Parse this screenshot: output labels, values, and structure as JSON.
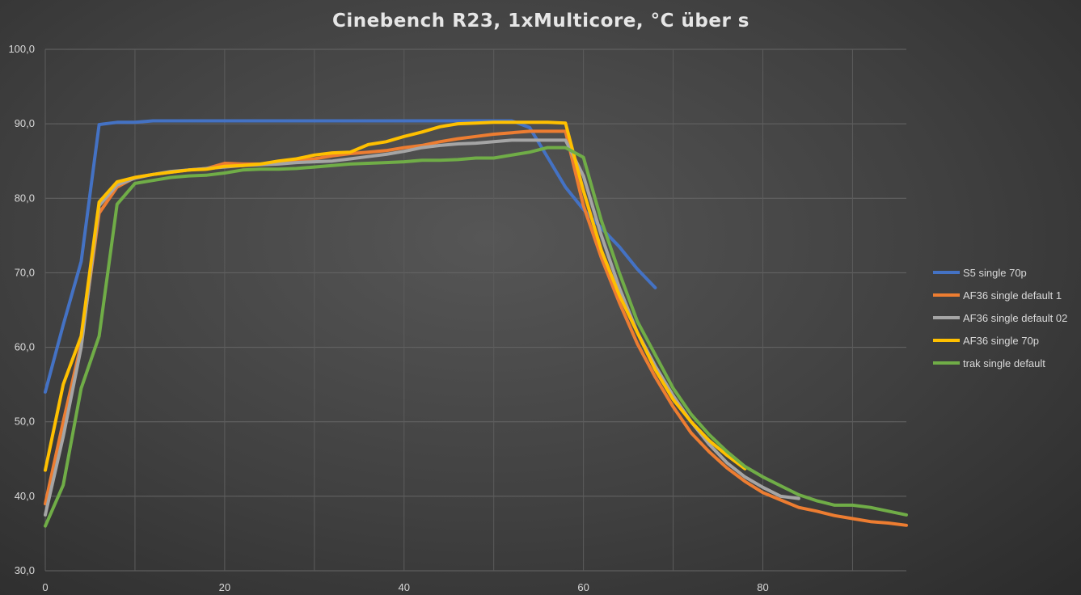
{
  "chart_data": {
    "type": "line",
    "title": "Cinebench R23, 1xMulticore, °C über s",
    "xlabel": "",
    "ylabel": "",
    "xlim": [
      0,
      96
    ],
    "ylim": [
      30,
      100
    ],
    "x_ticks": [
      0,
      20,
      40,
      60,
      80
    ],
    "y_ticks": [
      30,
      40,
      50,
      60,
      70,
      80,
      90,
      100
    ],
    "y_tick_labels": [
      "30,0",
      "40,0",
      "50,0",
      "60,0",
      "70,0",
      "80,0",
      "90,0",
      "100,0"
    ],
    "grid": true,
    "legend_position": "right",
    "series": [
      {
        "name": "S5 single 70p",
        "color": "#4472c4",
        "x": [
          0,
          2,
          4,
          6,
          8,
          10,
          12,
          14,
          16,
          18,
          20,
          22,
          24,
          26,
          28,
          30,
          32,
          34,
          36,
          38,
          40,
          42,
          44,
          46,
          48,
          50,
          52,
          54,
          56,
          58,
          60,
          62,
          64,
          66,
          68
        ],
        "y": [
          54,
          63,
          71.5,
          89.9,
          90.2,
          90.2,
          90.4,
          90.4,
          90.4,
          90.4,
          90.4,
          90.4,
          90.4,
          90.4,
          90.4,
          90.4,
          90.4,
          90.4,
          90.4,
          90.4,
          90.4,
          90.4,
          90.4,
          90.4,
          90.4,
          90.4,
          90.4,
          89.5,
          85.5,
          81.5,
          78.5,
          76,
          73.5,
          70.5,
          68
        ]
      },
      {
        "name": "AF36 single default 1",
        "color": "#ed7d31",
        "x": [
          0,
          2,
          4,
          6,
          8,
          10,
          12,
          14,
          16,
          18,
          20,
          22,
          24,
          26,
          28,
          30,
          32,
          34,
          36,
          38,
          40,
          42,
          44,
          46,
          48,
          50,
          52,
          54,
          56,
          58,
          60,
          62,
          64,
          66,
          68,
          70,
          72,
          74,
          76,
          78,
          80,
          82,
          84,
          86,
          88,
          90,
          92,
          94,
          96
        ],
        "y": [
          39,
          50,
          60.5,
          78,
          81.5,
          82.8,
          83.2,
          83.5,
          83.8,
          84,
          84.7,
          84.6,
          84.6,
          84.8,
          85,
          85.3,
          85.7,
          86,
          86.2,
          86.4,
          86.8,
          87.1,
          87.6,
          88,
          88.3,
          88.6,
          88.8,
          89,
          89,
          89,
          79,
          72,
          66,
          60.5,
          56,
          52,
          48.5,
          46,
          43.8,
          42,
          40.5,
          39.5,
          38.5,
          38,
          37.4,
          37,
          36.6,
          36.4,
          36.1
        ]
      },
      {
        "name": "AF36 single default 02",
        "color": "#a5a5a5",
        "x": [
          0,
          2,
          4,
          6,
          8,
          10,
          12,
          14,
          16,
          18,
          20,
          22,
          24,
          26,
          28,
          30,
          32,
          34,
          36,
          38,
          40,
          42,
          44,
          46,
          48,
          50,
          52,
          54,
          56,
          58,
          60,
          62,
          64,
          66,
          68,
          70,
          72,
          74,
          76,
          78,
          80,
          82,
          84
        ],
        "y": [
          37.5,
          48,
          60,
          79,
          81.8,
          82.7,
          83.2,
          83.6,
          83.8,
          84,
          84.2,
          84.4,
          84.5,
          84.6,
          84.8,
          84.9,
          85,
          85.3,
          85.6,
          85.9,
          86.3,
          86.8,
          87.1,
          87.3,
          87.4,
          87.6,
          87.8,
          87.8,
          87.8,
          87.8,
          83,
          75,
          68,
          62,
          57.5,
          53.5,
          50,
          47,
          44.5,
          42.6,
          41.2,
          40,
          39.7
        ]
      },
      {
        "name": "AF36 single 70p",
        "color": "#ffc000",
        "x": [
          0,
          2,
          4,
          6,
          8,
          10,
          12,
          14,
          16,
          18,
          20,
          22,
          24,
          26,
          28,
          30,
          32,
          34,
          36,
          38,
          40,
          42,
          44,
          46,
          48,
          50,
          52,
          54,
          56,
          58,
          60,
          62,
          64,
          66,
          68,
          70,
          72,
          74,
          76,
          78
        ],
        "y": [
          43.5,
          55,
          61.5,
          79.5,
          82.2,
          82.8,
          83.2,
          83.5,
          83.8,
          83.9,
          84.3,
          84.4,
          84.6,
          85,
          85.3,
          85.8,
          86.1,
          86.2,
          87.2,
          87.6,
          88.3,
          88.9,
          89.6,
          90,
          90.1,
          90.2,
          90.2,
          90.2,
          90.2,
          90.1,
          81,
          73,
          67,
          62,
          57,
          53,
          50,
          47.5,
          45.5,
          43.7
        ]
      },
      {
        "name": "trak single default",
        "color": "#70ad47",
        "x": [
          0,
          2,
          4,
          6,
          8,
          10,
          12,
          14,
          16,
          18,
          20,
          22,
          24,
          26,
          28,
          30,
          32,
          34,
          36,
          38,
          40,
          42,
          44,
          46,
          48,
          50,
          52,
          54,
          56,
          58,
          60,
          62,
          64,
          66,
          68,
          70,
          72,
          74,
          76,
          78,
          80,
          82,
          84,
          86,
          88,
          90,
          92,
          94,
          96
        ],
        "y": [
          36,
          41.5,
          54.5,
          61.5,
          79.2,
          82,
          82.4,
          82.8,
          83,
          83.1,
          83.4,
          83.8,
          83.9,
          83.9,
          84,
          84.2,
          84.4,
          84.6,
          84.7,
          84.8,
          84.9,
          85.1,
          85.1,
          85.2,
          85.4,
          85.4,
          85.8,
          86.2,
          86.8,
          86.8,
          85.5,
          77,
          70,
          63.5,
          59,
          54.5,
          51,
          48.3,
          46,
          44,
          42.6,
          41.4,
          40.2,
          39.4,
          38.8,
          38.8,
          38.5,
          38,
          37.5
        ]
      }
    ]
  }
}
